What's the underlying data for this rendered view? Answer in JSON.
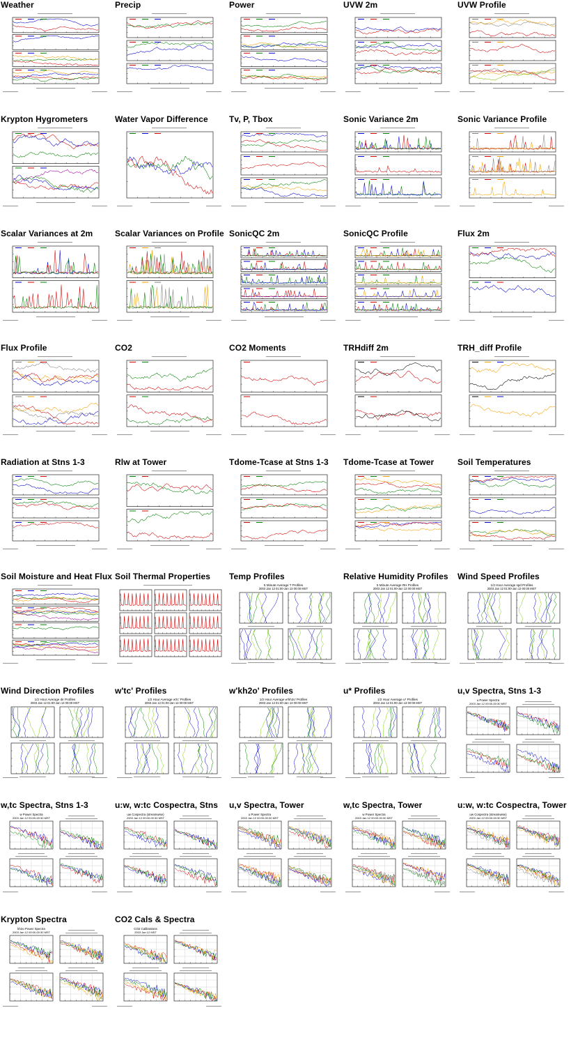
{
  "thumbnails": [
    {
      "title": "Weather",
      "kind": "tim",
      "panels": 4,
      "colors": [
        "#d00000",
        "#0000d0",
        "#008000",
        "#f0a000"
      ]
    },
    {
      "title": "Precip",
      "kind": "tim",
      "panels": 3,
      "colors": [
        "#d00000",
        "#008000",
        "#0000d0"
      ]
    },
    {
      "title": "Power",
      "kind": "tim",
      "panels": 4,
      "colors": [
        "#d00000",
        "#008000",
        "#0000d0",
        "#f0a000"
      ]
    },
    {
      "title": "UVW 2m",
      "kind": "tim",
      "panels": 3,
      "colors": [
        "#0000d0",
        "#d00000",
        "#008000"
      ]
    },
    {
      "title": "UVW Profile",
      "kind": "tim",
      "panels": 3,
      "colors": [
        "#808080",
        "#d00000",
        "#f0a000",
        "#80c000"
      ]
    },
    {
      "title": "Krypton Hygrometers",
      "kind": "tim",
      "panels": 2,
      "colors": [
        "#008000",
        "#d00000",
        "#0000d0",
        "#a000a0"
      ]
    },
    {
      "title": "Water Vapor Difference",
      "kind": "tim",
      "panels": 1,
      "colors": [
        "#008000",
        "#0000d0",
        "#d00000",
        "#f0a000"
      ]
    },
    {
      "title": "Tv, P, Tbox",
      "kind": "tim",
      "panels": 3,
      "colors": [
        "#0000d0",
        "#d00000",
        "#008000",
        "#f0a000"
      ]
    },
    {
      "title": "Sonic Variance 2m",
      "kind": "tim",
      "panels": 3,
      "colors": [
        "#0000d0",
        "#d00000",
        "#008000"
      ]
    },
    {
      "title": "Sonic Variance Profile",
      "kind": "tim",
      "panels": 3,
      "colors": [
        "#808080",
        "#d00000",
        "#f0a000"
      ]
    },
    {
      "title": "Scalar Variances at 2m",
      "kind": "tim",
      "panels": 2,
      "colors": [
        "#0000d0",
        "#d00000",
        "#008000"
      ]
    },
    {
      "title": "Scalar Variances on Profile",
      "kind": "tim",
      "panels": 2,
      "colors": [
        "#d00000",
        "#f0a000",
        "#808080",
        "#008000"
      ]
    },
    {
      "title": "SonicQC 2m",
      "kind": "tim",
      "panels": 5,
      "colors": [
        "#0000d0",
        "#d00000",
        "#008000"
      ]
    },
    {
      "title": "SonicQC Profile",
      "kind": "tim",
      "panels": 5,
      "colors": [
        "#0000d0",
        "#d00000",
        "#008000",
        "#f0a000"
      ]
    },
    {
      "title": "Flux 2m",
      "kind": "tim",
      "panels": 2,
      "colors": [
        "#008000",
        "#0000d0",
        "#d00000"
      ]
    },
    {
      "title": "Flux Profile",
      "kind": "tim",
      "panels": 2,
      "colors": [
        "#808080",
        "#f0a000",
        "#d00000",
        "#0000d0"
      ]
    },
    {
      "title": "CO2",
      "kind": "tim",
      "panels": 2,
      "colors": [
        "#d00000",
        "#008000"
      ]
    },
    {
      "title": "CO2 Moments",
      "kind": "tim",
      "panels": 2,
      "colors": [
        "#d00000"
      ]
    },
    {
      "title": "TRHdiff 2m",
      "kind": "tim",
      "panels": 2,
      "colors": [
        "#000000",
        "#d00000"
      ]
    },
    {
      "title": "TRH_diff Profile",
      "kind": "tim",
      "panels": 2,
      "colors": [
        "#000000",
        "#f0a000",
        "#0000d0",
        "#008000"
      ]
    },
    {
      "title": "Radiation at Stns 1-3",
      "kind": "tim",
      "panels": 3,
      "colors": [
        "#0000d0",
        "#008000",
        "#d00000",
        "#f0a000"
      ]
    },
    {
      "title": "Rlw at Tower",
      "kind": "tim",
      "panels": 2,
      "colors": [
        "#008000",
        "#d00000"
      ]
    },
    {
      "title": "Tdome-Tcase at Stns 1-3",
      "kind": "tim",
      "panels": 3,
      "colors": [
        "#d00000",
        "#008000"
      ]
    },
    {
      "title": "Tdome-Tcase at Tower",
      "kind": "tim",
      "panels": 3,
      "colors": [
        "#d00000",
        "#008000",
        "#f0a000",
        "#0000d0"
      ]
    },
    {
      "title": "Soil Temperatures",
      "kind": "tim",
      "panels": 3,
      "colors": [
        "#d00000",
        "#0000d0",
        "#008000",
        "#f0a000"
      ]
    },
    {
      "title": "Soil Moisture and Heat Flux",
      "kind": "tim",
      "panels": 4,
      "colors": [
        "#d00000",
        "#0000d0",
        "#008000",
        "#f0a000",
        "#a000a0"
      ]
    },
    {
      "title": "Soil Thermal Properties",
      "kind": "thermal",
      "panels": 3,
      "colors": [
        "#d00000"
      ]
    },
    {
      "title": "Temp Profiles",
      "kind": "prof",
      "panels": 4,
      "colors": [
        "#0000d0",
        "#008000",
        "#80d000"
      ],
      "head": [
        "5 Minute Average T Profiles",
        "2003 Jan 12 01:00-Jan 13 00:00 MST"
      ]
    },
    {
      "title": "Relative Humidity Profiles",
      "kind": "prof",
      "panels": 4,
      "colors": [
        "#0000d0",
        "#008000",
        "#80d000"
      ],
      "head": [
        "5 Minute Average RH Profiles",
        "2003 Jan 12 01:00-Jan 13 00:00 MST"
      ]
    },
    {
      "title": "Wind Speed Profiles",
      "kind": "prof",
      "panels": 4,
      "colors": [
        "#0000d0",
        "#008000",
        "#80d000"
      ],
      "head": [
        "1/2 Hour Average spd Profiles",
        "2003 Jan 12 01:00-Jan 13 00:00 MST"
      ]
    },
    {
      "title": "Wind Direction Profiles",
      "kind": "prof",
      "panels": 4,
      "colors": [
        "#0000d0",
        "#008000",
        "#80d000"
      ],
      "head": [
        "1/2 Hour Average dir Profiles",
        "2003 Jan 12 01:00-Jan 13 00:00 MST"
      ]
    },
    {
      "title": "w'tc' Profiles",
      "kind": "prof",
      "panels": 4,
      "colors": [
        "#0000d0",
        "#008000",
        "#80d000"
      ],
      "head": [
        "1/2 Hour Average w'tc' Profiles",
        "2003 Jan 12 01:00-Jan 13 00:00 MST"
      ]
    },
    {
      "title": "w'kh2o' Profiles",
      "kind": "prof",
      "panels": 4,
      "colors": [
        "#0000d0",
        "#008000",
        "#80d000"
      ],
      "head": [
        "1/2 Hour Average w'kh2o' Profiles",
        "2003 Jan 12 01:00-Jan 13 00:00 MST"
      ]
    },
    {
      "title": "u* Profiles",
      "kind": "prof",
      "panels": 4,
      "colors": [
        "#0000d0",
        "#008000",
        "#80d000"
      ],
      "head": [
        "1/2 Hour Average u* Profiles",
        "2003 Jan 12 01:00-Jan 13 00:00 MST"
      ]
    },
    {
      "title": "u,v Spectra, Stns 1-3",
      "kind": "spec",
      "panels": 4,
      "colors": [
        "#d00000",
        "#0000d0",
        "#008000"
      ],
      "head": [
        "u Power Spectra",
        "2003 Jan 12 00:00-00:30 MST"
      ]
    },
    {
      "title": "w,tc Spectra, Stns 1-3",
      "kind": "spec",
      "panels": 4,
      "colors": [
        "#d00000",
        "#0000d0",
        "#008000"
      ],
      "head": [
        "w Power Spectra",
        "2003 Jan 12 00:00-00:30 MST"
      ]
    },
    {
      "title": "u:w, w:tc Cospectra, Stns",
      "kind": "spec",
      "panels": 4,
      "colors": [
        "#d00000",
        "#0000d0",
        "#008000"
      ],
      "head": [
        "uw Cospectra (streamwise)",
        "2003 Jan 12 00:00-00:30 MST"
      ]
    },
    {
      "title": "u,v Spectra, Tower",
      "kind": "spec",
      "panels": 4,
      "colors": [
        "#d00000",
        "#0000d0",
        "#008000",
        "#f0a000",
        "#808080"
      ],
      "head": [
        "u Power Spectra",
        "2003 Jan 12 00:00-00:30 MST"
      ]
    },
    {
      "title": "w,tc Spectra, Tower",
      "kind": "spec",
      "panels": 4,
      "colors": [
        "#d00000",
        "#0000d0",
        "#008000",
        "#f0a000",
        "#808080"
      ],
      "head": [
        "w Power Spectra",
        "2003 Jan 12 00:00-00:30 MST"
      ]
    },
    {
      "title": "u:w, w:tc Cospectra, Tower",
      "kind": "spec",
      "panels": 4,
      "colors": [
        "#d00000",
        "#0000d0",
        "#008000",
        "#f0a000",
        "#808080"
      ],
      "head": [
        "uw Cospectra (streamwise)",
        "2003 Jan 12 00:00-00:30 MST"
      ]
    },
    {
      "title": "Krypton Spectra",
      "kind": "spec",
      "panels": 4,
      "colors": [
        "#d00000",
        "#0000d0",
        "#008000",
        "#f0a000"
      ],
      "head": [
        "kh2o Power Spectra",
        "2003 Jan 12 00:00-00:30 MST"
      ]
    },
    {
      "title": "CO2 Cals & Spectra",
      "kind": "spec",
      "panels": 4,
      "colors": [
        "#d00000",
        "#0000d0",
        "#008000",
        "#f0a000"
      ],
      "head": [
        "CO2 Calibrations",
        "2003 Jan 12 MST"
      ]
    }
  ]
}
